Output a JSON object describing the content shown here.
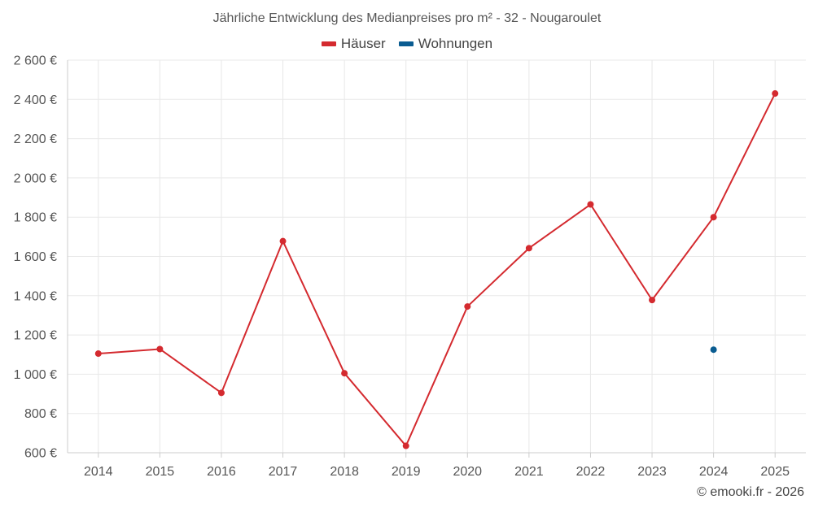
{
  "title": "Jährliche Entwicklung des Medianpreises pro m² - 32 - Nougaroulet",
  "credit": "© emooki.fr - 2026",
  "colors": {
    "houses": "#d42a2f",
    "apartments": "#0a5c91",
    "grid": "#e8e8e8",
    "axis": "#cccccc"
  },
  "chart_data": {
    "type": "line",
    "title": "Jährliche Entwicklung des Medianpreises pro m² - 32 - Nougaroulet",
    "categories": [
      "2014",
      "2015",
      "2016",
      "2017",
      "2018",
      "2019",
      "2020",
      "2021",
      "2022",
      "2023",
      "2024",
      "2025"
    ],
    "ylim": [
      600,
      2600
    ],
    "yticks": [
      600,
      800,
      1000,
      1200,
      1400,
      1600,
      1800,
      2000,
      2200,
      2400,
      2600
    ],
    "ytick_labels": [
      "600 €",
      "800 €",
      "1 000 €",
      "1 200 €",
      "1 400 €",
      "1 600 €",
      "1 800 €",
      "2 000 €",
      "2 200 €",
      "2 400 €",
      "2 600 €"
    ],
    "grid": true,
    "legend_position": "top-center",
    "series": [
      {
        "name": "Häuser",
        "color": "#d42a2f",
        "values": [
          1105,
          1128,
          905,
          1678,
          1005,
          635,
          1345,
          1642,
          1865,
          1378,
          1800,
          2430
        ]
      },
      {
        "name": "Wohnungen",
        "color": "#0a5c91",
        "values": [
          null,
          null,
          null,
          null,
          null,
          null,
          null,
          null,
          null,
          null,
          1125,
          null
        ]
      }
    ]
  }
}
